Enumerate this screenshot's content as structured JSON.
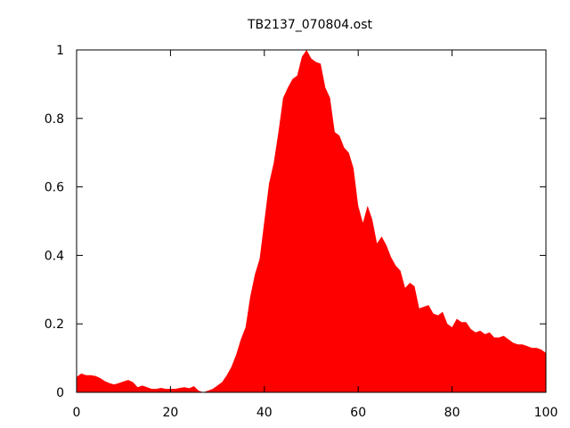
{
  "chart_data": {
    "type": "area",
    "title": "TB2137_070804.ost",
    "xlabel": "",
    "ylabel": "",
    "xlim": [
      0,
      100
    ],
    "ylim": [
      0,
      1
    ],
    "xticks": [
      0,
      20,
      40,
      60,
      80,
      100
    ],
    "yticks": [
      0,
      0.2,
      0.4,
      0.6,
      0.8,
      1
    ],
    "xtick_labels": [
      "0",
      "20",
      "40",
      "60",
      "80",
      "100"
    ],
    "ytick_labels": [
      "0",
      "0.2",
      "0.4",
      "0.6",
      "0.8",
      "1"
    ],
    "grid": false,
    "legend": "none",
    "fill_color": "#ff0000",
    "series": [
      {
        "x": [
          0,
          1,
          2,
          3,
          4,
          5,
          6,
          7,
          8,
          9,
          10,
          11,
          12,
          13,
          14,
          15,
          16,
          17,
          18,
          19,
          20,
          21,
          22,
          23,
          24,
          25,
          26,
          27,
          28,
          29,
          30,
          31,
          32,
          33,
          34,
          35,
          36,
          37,
          38,
          39,
          40,
          41,
          42,
          43,
          44,
          45,
          46,
          47,
          48,
          49,
          50,
          51,
          52,
          53,
          54,
          55,
          56,
          57,
          58,
          59,
          60,
          61,
          62,
          63,
          64,
          65,
          66,
          67,
          68,
          69,
          70,
          71,
          72,
          73,
          74,
          75,
          76,
          77,
          78,
          79,
          80,
          81,
          82,
          83,
          84,
          85,
          86,
          87,
          88,
          89,
          90,
          91,
          92,
          93,
          94,
          95,
          96,
          97,
          98,
          99,
          100
        ],
        "values": [
          0.045,
          0.055,
          0.05,
          0.05,
          0.048,
          0.042,
          0.033,
          0.027,
          0.023,
          0.027,
          0.032,
          0.036,
          0.03,
          0.015,
          0.02,
          0.015,
          0.01,
          0.01,
          0.013,
          0.01,
          0.01,
          0.01,
          0.013,
          0.015,
          0.012,
          0.018,
          0.005,
          0,
          0.005,
          0.01,
          0.02,
          0.03,
          0.05,
          0.075,
          0.11,
          0.155,
          0.19,
          0.28,
          0.345,
          0.39,
          0.5,
          0.61,
          0.67,
          0.76,
          0.86,
          0.89,
          0.915,
          0.925,
          0.98,
          1.0,
          0.975,
          0.965,
          0.96,
          0.89,
          0.86,
          0.76,
          0.75,
          0.715,
          0.7,
          0.655,
          0.545,
          0.495,
          0.545,
          0.505,
          0.435,
          0.455,
          0.43,
          0.395,
          0.37,
          0.355,
          0.305,
          0.32,
          0.31,
          0.245,
          0.25,
          0.255,
          0.23,
          0.225,
          0.235,
          0.2,
          0.19,
          0.215,
          0.205,
          0.205,
          0.185,
          0.175,
          0.18,
          0.17,
          0.175,
          0.16,
          0.16,
          0.165,
          0.155,
          0.145,
          0.14,
          0.14,
          0.135,
          0.13,
          0.13,
          0.125,
          0.115
        ]
      }
    ]
  }
}
